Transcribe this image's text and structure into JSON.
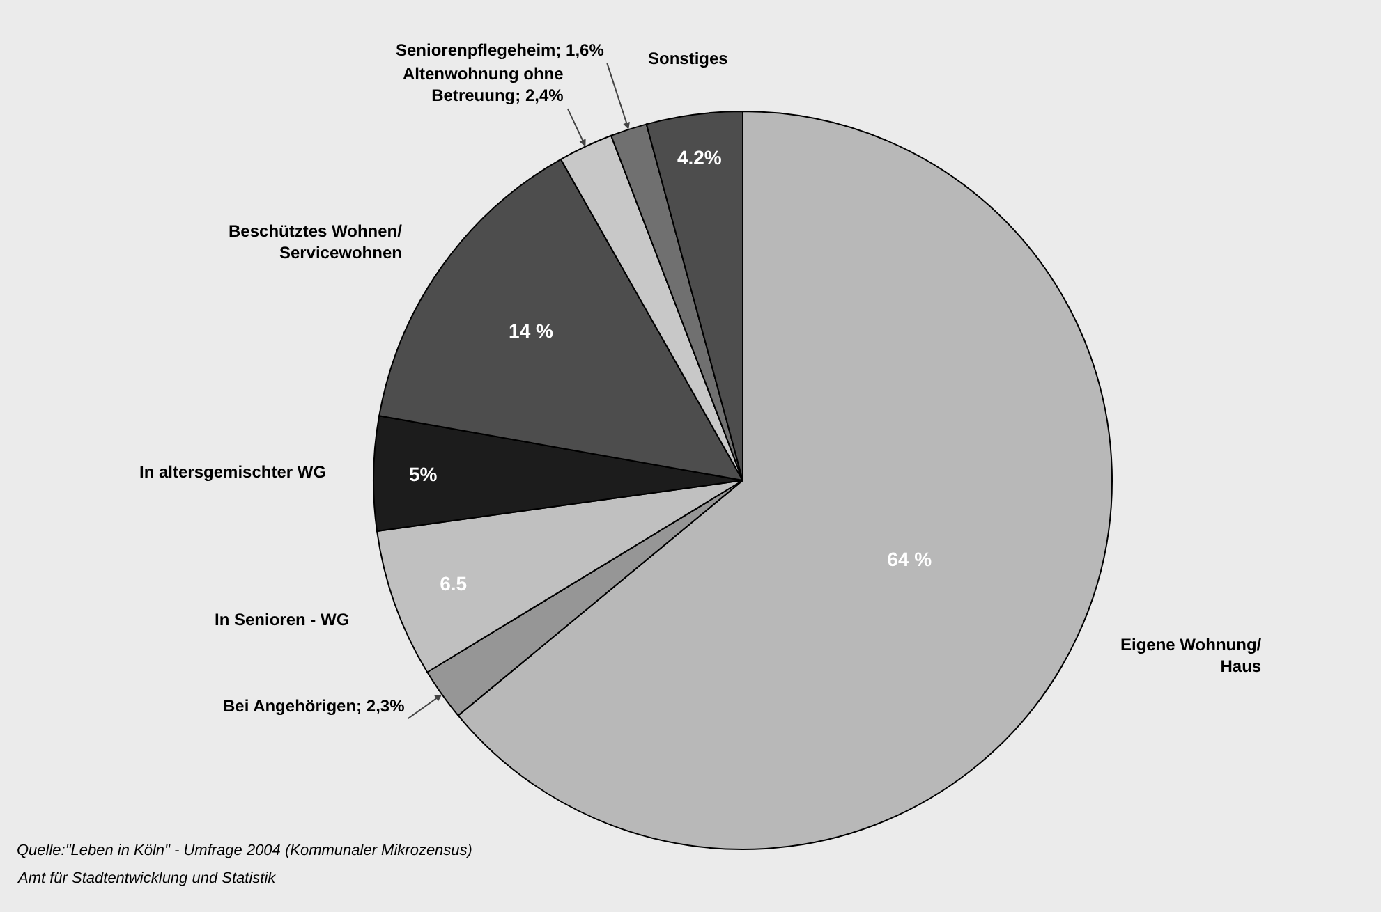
{
  "chart_data": {
    "type": "pie",
    "categories": [
      "Eigene Wohnung/ Haus",
      "Bei Angehörigen; 2,3%",
      "In Senioren - WG",
      "In altersgemischter WG",
      "Beschütztes Wohnen/ Servicewohnen",
      "Altenwohnung ohne Betreuung; 2,4%",
      "Seniorenpflegeheim; 1,6%",
      "Sonstiges"
    ],
    "values": [
      64,
      2.3,
      6.5,
      5,
      14,
      2.4,
      1.6,
      4.2
    ],
    "colors": [
      "#b8b8b8",
      "#969696",
      "#c0c0c0",
      "#1c1c1c",
      "#4d4d4d",
      "#c8c8c8",
      "#707070",
      "#4d4d4d"
    ],
    "value_labels": [
      "64 %",
      null,
      "6.5",
      "5%",
      "14 %",
      null,
      null,
      "4.2%"
    ],
    "legend": false,
    "annotations": [
      "Quelle:\"Leben in Köln\" - Umfrage 2004 (Kommunaler Mikrozensus)",
      "Amt für Stadtentwicklung und Statistik"
    ]
  }
}
